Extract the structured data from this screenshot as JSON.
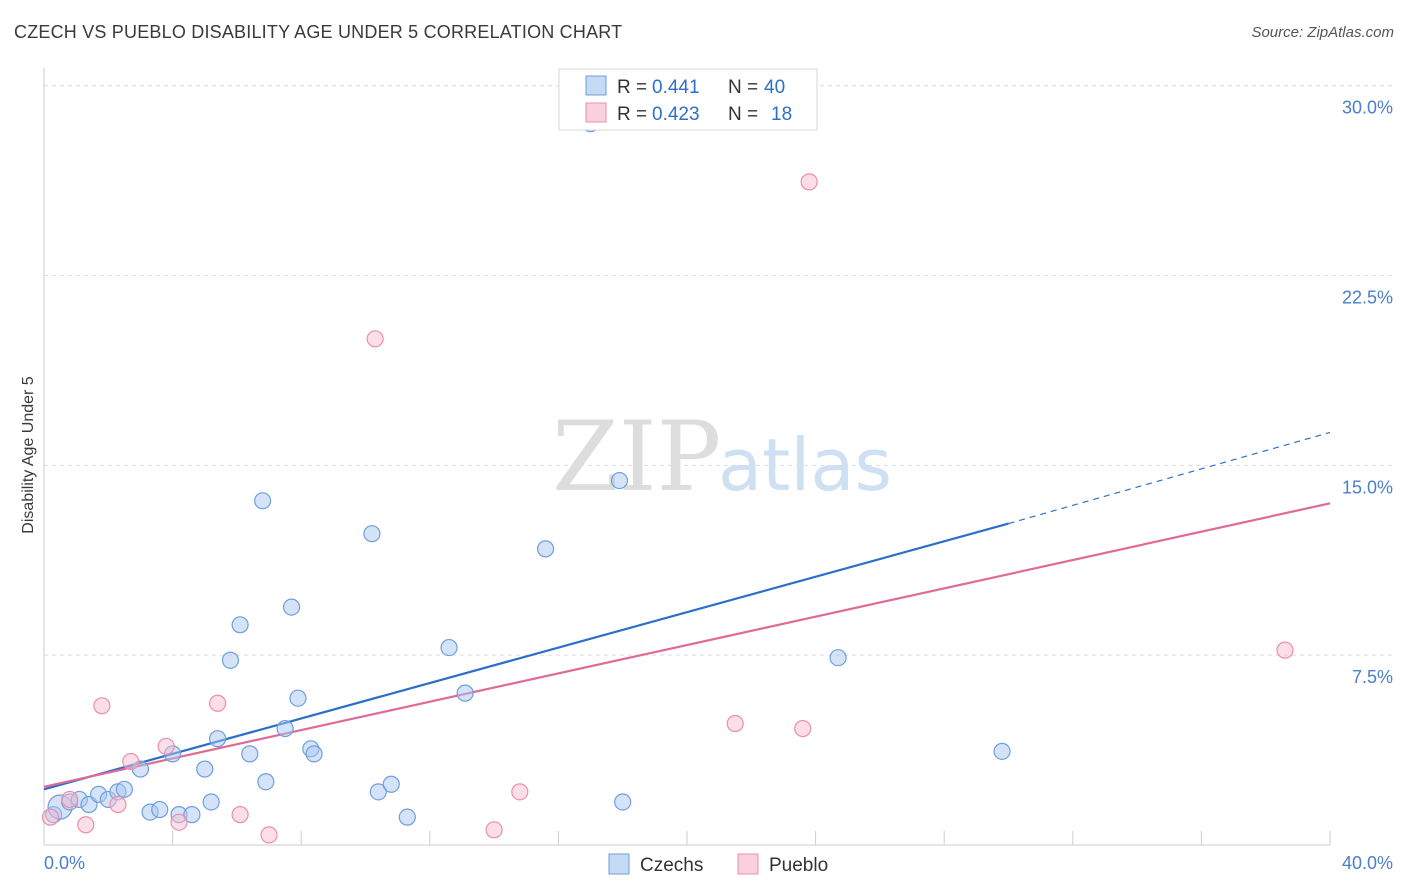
{
  "header": {
    "title": "CZECH VS PUEBLO DISABILITY AGE UNDER 5 CORRELATION CHART",
    "source": "Source: ZipAtlas.com"
  },
  "watermark": {
    "zip": "ZIP",
    "atlas": "atlas"
  },
  "legend_top": {
    "rows": [
      {
        "r_label": "R =",
        "r_value": "0.441",
        "n_label": "N =",
        "n_value": "40"
      },
      {
        "r_label": "R =",
        "r_value": "0.423",
        "n_label": "N =",
        "n_value": "18"
      }
    ]
  },
  "colors": {
    "czechs_fill": "#aac8f0",
    "czechs_stroke": "#6f9fdc",
    "czechs_line": "#2b6fc8",
    "pueblo_fill": "#f7bdd0",
    "pueblo_stroke": "#ea8fae",
    "pueblo_line": "#e06a96",
    "grid": "#dcdcdc",
    "tick_label": "#4a7fc9"
  },
  "chart_data": {
    "type": "scatter",
    "title": "CZECH VS PUEBLO DISABILITY AGE UNDER 5 CORRELATION CHART",
    "xlabel": "",
    "ylabel": "Disability Age Under 5",
    "xlim": [
      0,
      40
    ],
    "ylim": [
      0,
      30.7
    ],
    "x_tick_labels": [
      "0.0%",
      "40.0%"
    ],
    "y_ticks": [
      7.5,
      15.0,
      22.5,
      30.0
    ],
    "y_tick_labels": [
      "7.5%",
      "15.0%",
      "22.5%",
      "30.0%"
    ],
    "grid": true,
    "legend_placement": "top-center",
    "series": [
      {
        "name": "Czechs",
        "points": [
          [
            0.3,
            1.2
          ],
          [
            0.5,
            1.5
          ],
          [
            0.8,
            1.7
          ],
          [
            1.1,
            1.8
          ],
          [
            1.4,
            1.6
          ],
          [
            1.7,
            2.0
          ],
          [
            2.0,
            1.8
          ],
          [
            2.3,
            2.1
          ],
          [
            2.5,
            2.2
          ],
          [
            3.0,
            3.0
          ],
          [
            3.3,
            1.3
          ],
          [
            3.6,
            1.4
          ],
          [
            4.0,
            3.6
          ],
          [
            4.2,
            1.2
          ],
          [
            4.6,
            1.2
          ],
          [
            5.0,
            3.0
          ],
          [
            5.2,
            1.7
          ],
          [
            5.4,
            4.2
          ],
          [
            5.8,
            7.3
          ],
          [
            6.1,
            8.7
          ],
          [
            6.4,
            3.6
          ],
          [
            6.8,
            13.6
          ],
          [
            6.9,
            2.5
          ],
          [
            7.5,
            4.6
          ],
          [
            7.7,
            9.4
          ],
          [
            7.9,
            5.8
          ],
          [
            8.3,
            3.8
          ],
          [
            8.4,
            3.6
          ],
          [
            10.2,
            12.3
          ],
          [
            10.4,
            2.1
          ],
          [
            10.8,
            2.4
          ],
          [
            11.3,
            1.1
          ],
          [
            12.6,
            7.8
          ],
          [
            13.1,
            6.0
          ],
          [
            15.6,
            11.7
          ],
          [
            17.9,
            14.4
          ],
          [
            18.0,
            1.7
          ],
          [
            24.7,
            7.4
          ],
          [
            29.8,
            3.7
          ],
          [
            17.0,
            28.5
          ]
        ],
        "trend": {
          "x": [
            0.0,
            30.0
          ],
          "y": [
            2.2,
            12.7
          ],
          "dashed_extension": {
            "x": [
              30.0,
              40.0
            ],
            "y": [
              12.7,
              16.3
            ]
          }
        }
      },
      {
        "name": "Pueblo",
        "points": [
          [
            0.2,
            1.1
          ],
          [
            0.8,
            1.8
          ],
          [
            1.3,
            0.8
          ],
          [
            1.8,
            5.5
          ],
          [
            2.3,
            1.6
          ],
          [
            2.7,
            3.3
          ],
          [
            3.8,
            3.9
          ],
          [
            4.2,
            0.9
          ],
          [
            5.4,
            5.6
          ],
          [
            6.1,
            1.2
          ],
          [
            7.0,
            0.4
          ],
          [
            10.3,
            20.0
          ],
          [
            14.0,
            0.6
          ],
          [
            14.8,
            2.1
          ],
          [
            21.5,
            4.8
          ],
          [
            23.6,
            4.6
          ],
          [
            23.8,
            26.2
          ],
          [
            38.6,
            7.7
          ]
        ],
        "trend": {
          "x": [
            0.0,
            40.0
          ],
          "y": [
            2.3,
            13.5
          ]
        }
      }
    ]
  },
  "legend_bottom": {
    "items": [
      {
        "label": "Czechs"
      },
      {
        "label": "Pueblo"
      }
    ]
  }
}
